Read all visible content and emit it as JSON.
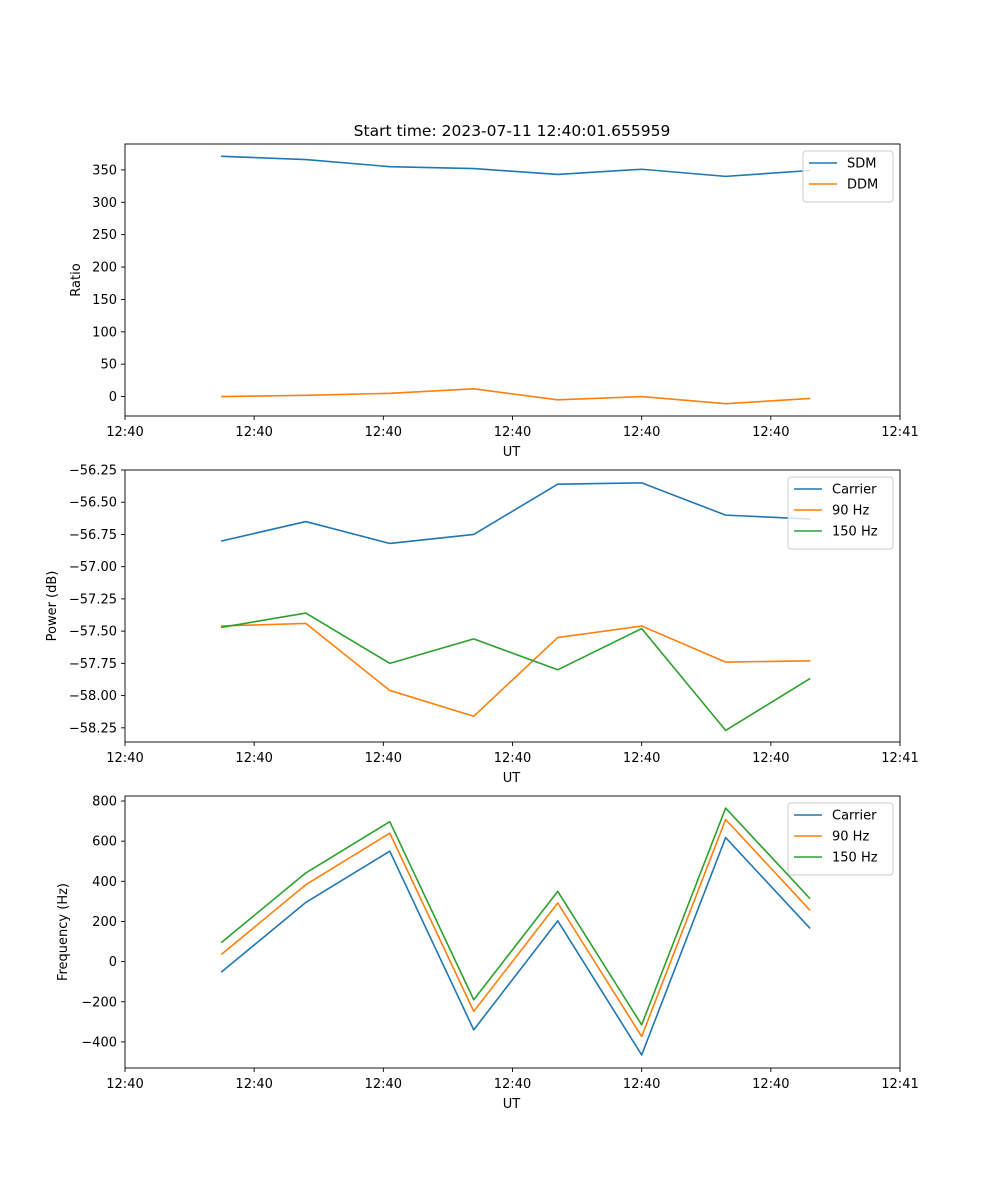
{
  "figure_title": "Start time: 2023-07-11 12:40:01.655959",
  "chart_data": [
    {
      "type": "line",
      "title": "Start time: 2023-07-11 12:40:01.655959",
      "xlabel": "UT",
      "ylabel": "Ratio",
      "x": [
        0.75,
        1.4,
        2.05,
        2.7,
        3.35,
        4.0,
        4.65,
        5.3
      ],
      "xlim": [
        0,
        6.0
      ],
      "xticks": [
        {
          "value": 0.0,
          "label": "12:40"
        },
        {
          "value": 1.0,
          "label": "12:40"
        },
        {
          "value": 2.0,
          "label": "12:40"
        },
        {
          "value": 3.0,
          "label": "12:40"
        },
        {
          "value": 4.0,
          "label": "12:40"
        },
        {
          "value": 5.0,
          "label": "12:40"
        },
        {
          "value": 6.0,
          "label": "12:41"
        }
      ],
      "ylim": [
        -30,
        390
      ],
      "yticks": [
        {
          "value": 0,
          "label": "0"
        },
        {
          "value": 50,
          "label": "50"
        },
        {
          "value": 100,
          "label": "100"
        },
        {
          "value": 150,
          "label": "150"
        },
        {
          "value": 200,
          "label": "200"
        },
        {
          "value": 250,
          "label": "250"
        },
        {
          "value": 300,
          "label": "300"
        },
        {
          "value": 350,
          "label": "350"
        }
      ],
      "legend_position": "top-right",
      "series": [
        {
          "name": "SDM",
          "color": "#1f77b4",
          "values": [
            371,
            366,
            355,
            352,
            343,
            351,
            340,
            349
          ]
        },
        {
          "name": "DDM",
          "color": "#ff7f0e",
          "values": [
            0,
            2,
            5,
            12,
            -5,
            0,
            -11,
            -3
          ]
        }
      ]
    },
    {
      "type": "line",
      "title": "",
      "xlabel": "UT",
      "ylabel": "Power (dB)",
      "x": [
        0.75,
        1.4,
        2.05,
        2.7,
        3.35,
        4.0,
        4.65,
        5.3
      ],
      "xlim": [
        0,
        6.0
      ],
      "xticks": [
        {
          "value": 0.0,
          "label": "12:40"
        },
        {
          "value": 1.0,
          "label": "12:40"
        },
        {
          "value": 2.0,
          "label": "12:40"
        },
        {
          "value": 3.0,
          "label": "12:40"
        },
        {
          "value": 4.0,
          "label": "12:40"
        },
        {
          "value": 5.0,
          "label": "12:40"
        },
        {
          "value": 6.0,
          "label": "12:41"
        }
      ],
      "ylim": [
        -58.36,
        -56.25
      ],
      "yticks": [
        {
          "value": -58.25,
          "label": "−58.25"
        },
        {
          "value": -58.0,
          "label": "−58.00"
        },
        {
          "value": -57.75,
          "label": "−57.75"
        },
        {
          "value": -57.5,
          "label": "−57.50"
        },
        {
          "value": -57.25,
          "label": "−57.25"
        },
        {
          "value": -57.0,
          "label": "−57.00"
        },
        {
          "value": -56.75,
          "label": "−56.75"
        },
        {
          "value": -56.5,
          "label": "−56.50"
        },
        {
          "value": -56.25,
          "label": "−56.25"
        }
      ],
      "legend_position": "top-right",
      "series": [
        {
          "name": "Carrier",
          "color": "#1f77b4",
          "values": [
            -56.8,
            -56.65,
            -56.82,
            -56.75,
            -56.36,
            -56.35,
            -56.6,
            -56.63
          ]
        },
        {
          "name": "90 Hz",
          "color": "#ff7f0e",
          "values": [
            -57.46,
            -57.44,
            -57.96,
            -58.16,
            -57.55,
            -57.46,
            -57.74,
            -57.73
          ]
        },
        {
          "name": "150 Hz",
          "color": "#2ca02c",
          "values": [
            -57.47,
            -57.36,
            -57.75,
            -57.56,
            -57.8,
            -57.48,
            -58.27,
            -57.87
          ]
        }
      ]
    },
    {
      "type": "line",
      "title": "",
      "xlabel": "UT",
      "ylabel": "Frequency (Hz)",
      "x": [
        0.75,
        1.4,
        2.05,
        2.7,
        3.35,
        4.0,
        4.65,
        5.3
      ],
      "xlim": [
        0,
        6.0
      ],
      "xticks": [
        {
          "value": 0.0,
          "label": "12:40"
        },
        {
          "value": 1.0,
          "label": "12:40"
        },
        {
          "value": 2.0,
          "label": "12:40"
        },
        {
          "value": 3.0,
          "label": "12:40"
        },
        {
          "value": 4.0,
          "label": "12:40"
        },
        {
          "value": 5.0,
          "label": "12:40"
        },
        {
          "value": 6.0,
          "label": "12:41"
        }
      ],
      "ylim": [
        -530,
        825
      ],
      "yticks": [
        {
          "value": -400,
          "label": "−400"
        },
        {
          "value": -200,
          "label": "−200"
        },
        {
          "value": 0,
          "label": "0"
        },
        {
          "value": 200,
          "label": "200"
        },
        {
          "value": 400,
          "label": "400"
        },
        {
          "value": 600,
          "label": "600"
        },
        {
          "value": 800,
          "label": "800"
        }
      ],
      "legend_position": "top-right",
      "series": [
        {
          "name": "Carrier",
          "color": "#1f77b4",
          "values": [
            -50,
            295,
            550,
            -340,
            203,
            -465,
            618,
            168
          ]
        },
        {
          "name": "90 Hz",
          "color": "#ff7f0e",
          "values": [
            38,
            383,
            640,
            -248,
            292,
            -373,
            708,
            258
          ]
        },
        {
          "name": "150 Hz",
          "color": "#2ca02c",
          "values": [
            97,
            442,
            697,
            -190,
            350,
            -315,
            765,
            316
          ]
        }
      ]
    }
  ]
}
